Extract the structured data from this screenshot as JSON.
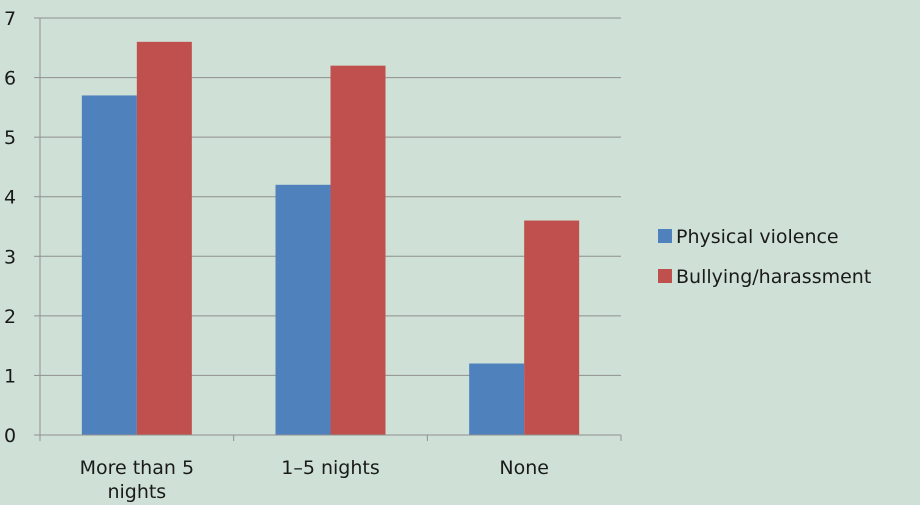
{
  "background": "#cfe1d6",
  "chart_data": {
    "type": "bar",
    "title": "",
    "xlabel": "",
    "ylabel": "",
    "categories": [
      "More than 5 nights",
      "1–5 nights",
      "None"
    ],
    "category_label_lines": [
      [
        "More than 5",
        "nights"
      ],
      [
        "1–5 nights"
      ],
      [
        "None"
      ]
    ],
    "series": [
      {
        "name": "Physical violence",
        "color": "#4f81bd",
        "values": [
          5.7,
          4.2,
          1.2
        ]
      },
      {
        "name": "Bullying/harassment",
        "color": "#c0504d",
        "values": [
          6.6,
          6.2,
          3.6
        ]
      }
    ],
    "ylim": [
      0,
      7
    ],
    "yticks": [
      0,
      1,
      2,
      3,
      4,
      5,
      6,
      7
    ],
    "grid": true,
    "gridline_color": "#8f8f8f",
    "legend": "right"
  }
}
